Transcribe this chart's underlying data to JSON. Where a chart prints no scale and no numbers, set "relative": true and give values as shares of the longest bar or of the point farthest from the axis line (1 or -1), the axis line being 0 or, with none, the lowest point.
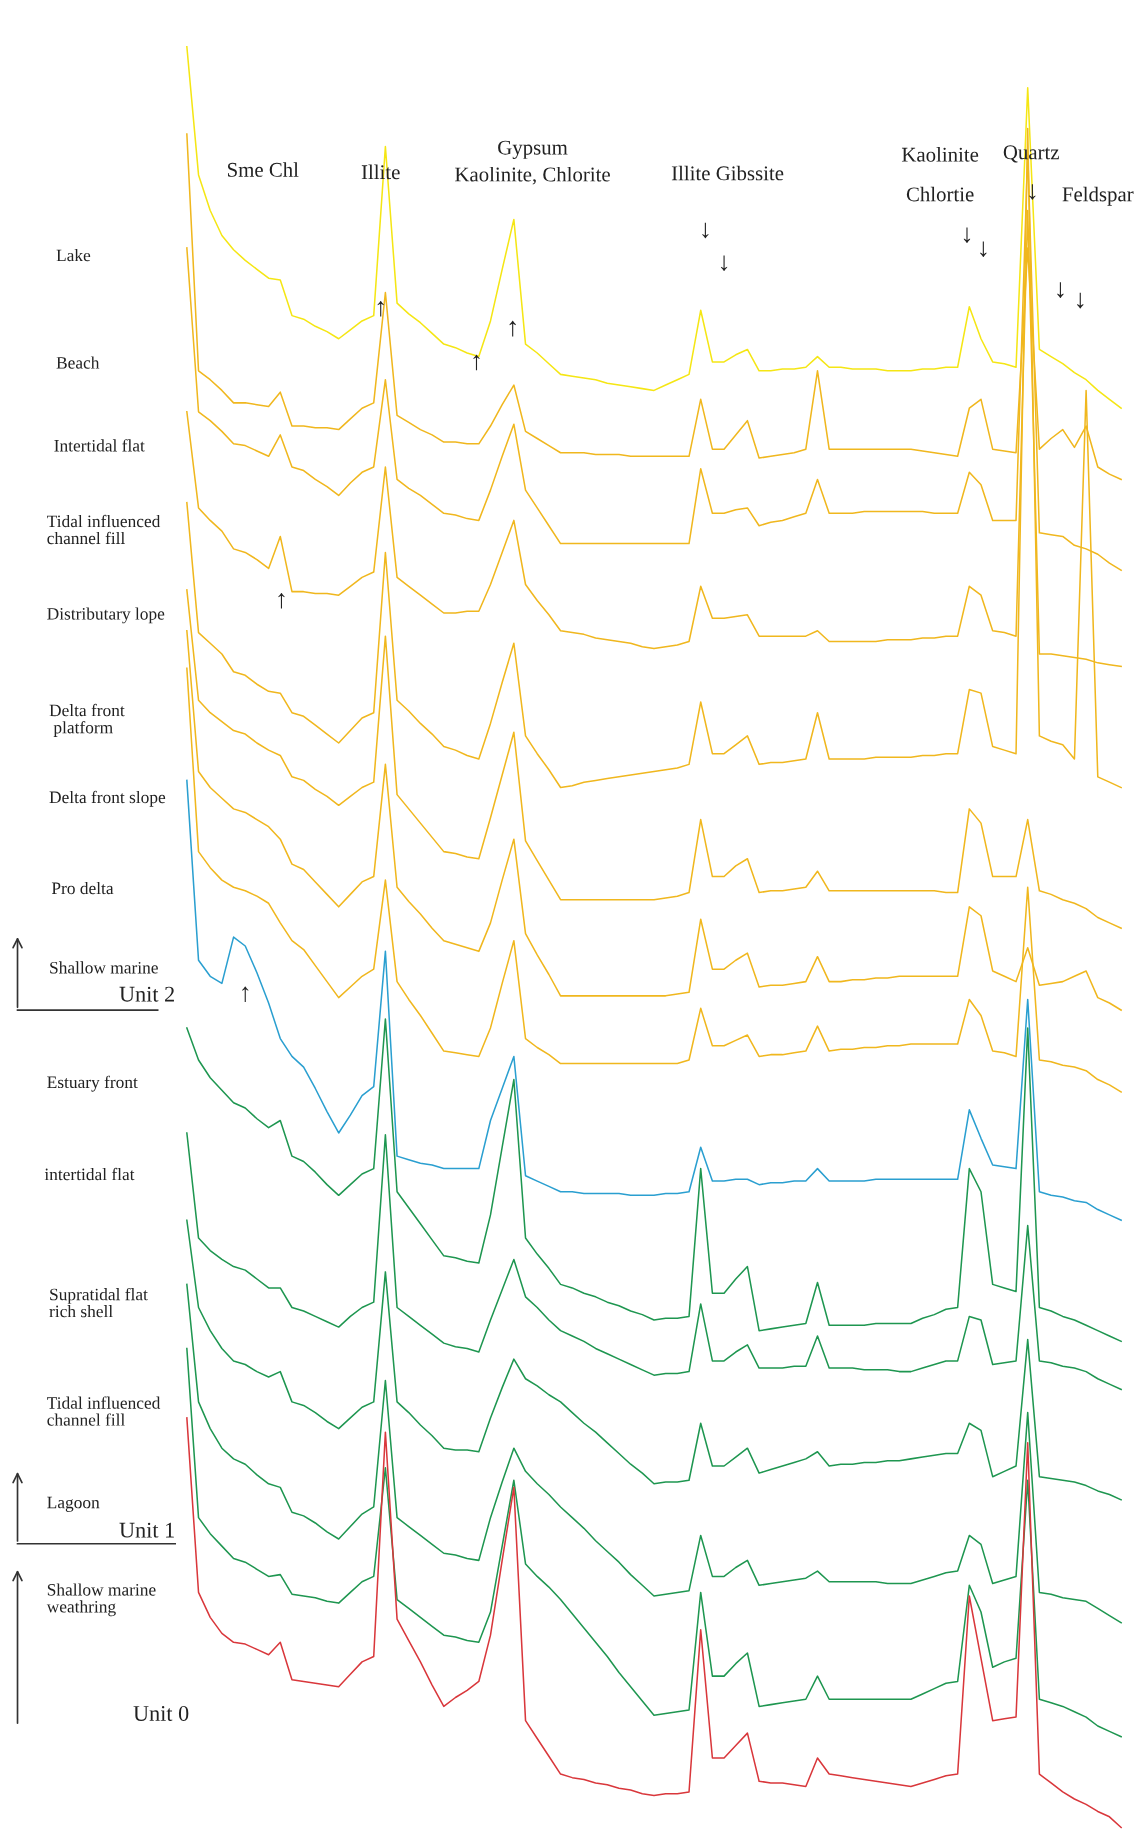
{
  "chart_data": {
    "type": "line",
    "relative": true,
    "tick_labels": false,
    "marker": "none",
    "line_style": "solid",
    "categories": [
      null,
      null,
      null,
      null,
      null,
      null,
      null,
      null,
      null,
      null,
      null,
      null,
      null,
      null,
      null,
      null,
      null,
      null,
      null,
      null,
      null,
      null,
      null,
      null,
      null,
      null,
      null,
      null,
      null,
      null,
      null,
      null,
      null,
      null,
      null,
      null,
      null,
      null,
      null,
      null,
      null,
      null,
      null,
      null,
      null,
      null,
      null,
      null,
      null,
      null,
      null,
      null,
      null,
      null,
      null,
      null,
      null,
      null,
      null,
      null,
      null,
      null,
      null,
      null,
      null,
      null,
      null,
      null,
      null,
      null,
      null,
      null,
      null,
      null,
      null,
      null,
      null,
      null,
      null,
      null,
      null
    ],
    "series": [
      {
        "color": "#f5e614",
        "values": [
          1.0,
          0.928,
          0.908,
          0.894,
          0.886,
          0.88,
          0.875,
          0.87,
          0.869,
          0.849,
          0.847,
          0.843,
          0.84,
          0.836,
          0.841,
          0.846,
          0.849,
          0.944,
          0.856,
          0.85,
          0.845,
          0.839,
          0.833,
          0.831,
          0.828,
          0.826,
          0.846,
          0.875,
          0.903,
          0.833,
          0.828,
          0.822,
          0.816,
          0.815,
          0.814,
          0.813,
          0.811,
          0.81,
          0.809,
          0.808,
          0.807,
          0.81,
          0.813,
          0.816,
          0.852,
          0.823,
          0.823,
          0.827,
          0.83,
          0.818,
          0.818,
          0.819,
          0.819,
          0.82,
          0.826,
          0.82,
          0.82,
          0.819,
          0.819,
          0.819,
          0.818,
          0.818,
          0.818,
          0.819,
          0.819,
          0.82,
          0.82,
          0.854,
          0.836,
          0.823,
          0.822,
          0.82,
          0.977,
          0.83,
          0.826,
          0.822,
          0.817,
          0.813,
          0.807,
          0.802,
          0.797
        ]
      },
      {
        "color": "#f0b71e",
        "values": [
          0.951,
          0.818,
          0.813,
          0.807,
          0.8,
          0.8,
          0.799,
          0.798,
          0.806,
          0.787,
          0.787,
          0.786,
          0.786,
          0.785,
          0.791,
          0.797,
          0.8,
          0.862,
          0.793,
          0.789,
          0.785,
          0.782,
          0.778,
          0.778,
          0.777,
          0.777,
          0.787,
          0.799,
          0.81,
          0.784,
          0.78,
          0.776,
          0.772,
          0.772,
          0.772,
          0.771,
          0.771,
          0.771,
          0.77,
          0.77,
          0.77,
          0.77,
          0.77,
          0.77,
          0.802,
          0.774,
          0.774,
          0.782,
          0.79,
          0.769,
          0.77,
          0.771,
          0.772,
          0.774,
          0.818,
          0.774,
          0.774,
          0.774,
          0.774,
          0.774,
          0.774,
          0.774,
          0.774,
          0.773,
          0.772,
          0.771,
          0.77,
          0.797,
          0.802,
          0.774,
          0.773,
          0.772,
          0.887,
          0.774,
          0.78,
          0.785,
          0.775,
          0.787,
          0.764,
          0.76,
          0.757
        ]
      },
      {
        "color": "#f0b71e",
        "values": [
          0.887,
          0.795,
          0.79,
          0.784,
          0.777,
          0.776,
          0.773,
          0.77,
          0.782,
          0.764,
          0.762,
          0.757,
          0.753,
          0.748,
          0.755,
          0.761,
          0.764,
          0.813,
          0.757,
          0.752,
          0.748,
          0.743,
          0.738,
          0.737,
          0.735,
          0.734,
          0.751,
          0.77,
          0.788,
          0.751,
          0.741,
          0.731,
          0.721,
          0.721,
          0.721,
          0.721,
          0.721,
          0.721,
          0.721,
          0.721,
          0.721,
          0.721,
          0.721,
          0.721,
          0.763,
          0.738,
          0.738,
          0.74,
          0.741,
          0.731,
          0.733,
          0.734,
          0.736,
          0.738,
          0.757,
          0.738,
          0.738,
          0.738,
          0.739,
          0.739,
          0.739,
          0.739,
          0.739,
          0.739,
          0.738,
          0.738,
          0.738,
          0.761,
          0.754,
          0.734,
          0.734,
          0.734,
          0.941,
          0.727,
          0.726,
          0.725,
          0.72,
          0.718,
          0.715,
          0.71,
          0.706
        ]
      },
      {
        "color": "#f0b71e",
        "values": [
          0.795,
          0.741,
          0.734,
          0.728,
          0.718,
          0.716,
          0.712,
          0.707,
          0.725,
          0.694,
          0.694,
          0.693,
          0.693,
          0.692,
          0.697,
          0.702,
          0.705,
          0.764,
          0.702,
          0.697,
          0.692,
          0.687,
          0.682,
          0.682,
          0.683,
          0.683,
          0.698,
          0.716,
          0.734,
          0.698,
          0.689,
          0.681,
          0.672,
          0.671,
          0.67,
          0.668,
          0.667,
          0.666,
          0.665,
          0.663,
          0.662,
          0.663,
          0.664,
          0.666,
          0.697,
          0.679,
          0.679,
          0.68,
          0.681,
          0.669,
          0.669,
          0.669,
          0.669,
          0.669,
          0.672,
          0.666,
          0.666,
          0.666,
          0.666,
          0.666,
          0.667,
          0.667,
          0.667,
          0.668,
          0.668,
          0.669,
          0.669,
          0.697,
          0.692,
          0.672,
          0.671,
          0.669,
          0.908,
          0.659,
          0.659,
          0.658,
          0.657,
          0.656,
          0.654,
          0.653,
          0.652
        ]
      },
      {
        "color": "#f0b71e",
        "values": [
          0.744,
          0.671,
          0.665,
          0.659,
          0.649,
          0.647,
          0.642,
          0.638,
          0.637,
          0.626,
          0.624,
          0.619,
          0.614,
          0.609,
          0.616,
          0.623,
          0.626,
          0.716,
          0.633,
          0.627,
          0.62,
          0.614,
          0.607,
          0.605,
          0.602,
          0.6,
          0.62,
          0.643,
          0.665,
          0.613,
          0.603,
          0.594,
          0.584,
          0.585,
          0.587,
          0.588,
          0.589,
          0.59,
          0.591,
          0.592,
          0.593,
          0.594,
          0.595,
          0.597,
          0.632,
          0.603,
          0.603,
          0.608,
          0.613,
          0.597,
          0.598,
          0.598,
          0.599,
          0.6,
          0.626,
          0.6,
          0.6,
          0.6,
          0.6,
          0.601,
          0.601,
          0.601,
          0.601,
          0.602,
          0.602,
          0.603,
          0.603,
          0.639,
          0.637,
          0.607,
          0.605,
          0.603,
          0.954,
          0.613,
          0.61,
          0.608,
          0.6,
          0.807,
          0.59,
          0.587,
          0.584
        ]
      },
      {
        "color": "#f0b71e",
        "values": [
          0.695,
          0.633,
          0.626,
          0.621,
          0.616,
          0.614,
          0.609,
          0.605,
          0.602,
          0.59,
          0.588,
          0.583,
          0.579,
          0.574,
          0.579,
          0.584,
          0.587,
          0.669,
          0.58,
          0.572,
          0.564,
          0.556,
          0.548,
          0.547,
          0.545,
          0.544,
          0.567,
          0.591,
          0.615,
          0.554,
          0.543,
          0.532,
          0.521,
          0.521,
          0.521,
          0.521,
          0.521,
          0.521,
          0.521,
          0.521,
          0.521,
          0.522,
          0.523,
          0.525,
          0.566,
          0.534,
          0.534,
          0.54,
          0.544,
          0.525,
          0.526,
          0.526,
          0.527,
          0.528,
          0.537,
          0.526,
          0.526,
          0.526,
          0.526,
          0.526,
          0.526,
          0.526,
          0.526,
          0.526,
          0.526,
          0.525,
          0.525,
          0.572,
          0.564,
          0.534,
          0.534,
          0.534,
          0.566,
          0.526,
          0.524,
          0.521,
          0.519,
          0.516,
          0.511,
          0.508,
          0.505
        ]
      },
      {
        "color": "#f0b71e",
        "values": [
          0.672,
          0.593,
          0.584,
          0.578,
          0.572,
          0.57,
          0.566,
          0.562,
          0.555,
          0.541,
          0.538,
          0.531,
          0.524,
          0.517,
          0.524,
          0.531,
          0.534,
          0.597,
          0.528,
          0.52,
          0.513,
          0.505,
          0.498,
          0.496,
          0.494,
          0.492,
          0.508,
          0.532,
          0.555,
          0.502,
          0.49,
          0.479,
          0.467,
          0.467,
          0.467,
          0.467,
          0.467,
          0.467,
          0.467,
          0.467,
          0.467,
          0.467,
          0.468,
          0.469,
          0.51,
          0.482,
          0.482,
          0.487,
          0.491,
          0.472,
          0.473,
          0.473,
          0.474,
          0.475,
          0.489,
          0.475,
          0.475,
          0.476,
          0.476,
          0.477,
          0.477,
          0.478,
          0.478,
          0.478,
          0.478,
          0.478,
          0.478,
          0.517,
          0.512,
          0.481,
          0.478,
          0.475,
          0.494,
          0.473,
          0.474,
          0.475,
          0.478,
          0.481,
          0.466,
          0.463,
          0.459
        ]
      },
      {
        "color": "#f0b71e",
        "values": [
          0.651,
          0.548,
          0.539,
          0.532,
          0.528,
          0.526,
          0.523,
          0.519,
          0.508,
          0.498,
          0.493,
          0.484,
          0.475,
          0.466,
          0.472,
          0.478,
          0.482,
          0.532,
          0.475,
          0.465,
          0.456,
          0.446,
          0.436,
          0.435,
          0.434,
          0.433,
          0.449,
          0.474,
          0.498,
          0.443,
          0.438,
          0.434,
          0.429,
          0.429,
          0.429,
          0.429,
          0.429,
          0.429,
          0.429,
          0.429,
          0.429,
          0.429,
          0.429,
          0.431,
          0.46,
          0.439,
          0.439,
          0.442,
          0.445,
          0.433,
          0.434,
          0.434,
          0.435,
          0.436,
          0.45,
          0.436,
          0.437,
          0.437,
          0.438,
          0.438,
          0.439,
          0.439,
          0.44,
          0.44,
          0.44,
          0.44,
          0.44,
          0.465,
          0.456,
          0.436,
          0.435,
          0.433,
          0.528,
          0.431,
          0.43,
          0.428,
          0.427,
          0.425,
          0.42,
          0.417,
          0.413
        ]
      },
      {
        "color": "#2a9fd0",
        "values": [
          0.588,
          0.487,
          0.478,
          0.474,
          0.5,
          0.495,
          0.48,
          0.463,
          0.443,
          0.433,
          0.427,
          0.415,
          0.402,
          0.39,
          0.4,
          0.411,
          0.416,
          0.492,
          0.377,
          0.375,
          0.373,
          0.372,
          0.37,
          0.37,
          0.37,
          0.37,
          0.397,
          0.415,
          0.433,
          0.366,
          0.363,
          0.36,
          0.357,
          0.357,
          0.356,
          0.356,
          0.356,
          0.356,
          0.355,
          0.355,
          0.355,
          0.356,
          0.356,
          0.357,
          0.382,
          0.363,
          0.363,
          0.364,
          0.364,
          0.361,
          0.362,
          0.362,
          0.363,
          0.363,
          0.37,
          0.363,
          0.363,
          0.363,
          0.363,
          0.364,
          0.364,
          0.364,
          0.364,
          0.364,
          0.364,
          0.364,
          0.364,
          0.403,
          0.387,
          0.372,
          0.371,
          0.37,
          0.465,
          0.357,
          0.355,
          0.354,
          0.352,
          0.351,
          0.347,
          0.344,
          0.341
        ]
      },
      {
        "color": "#1e9650",
        "values": [
          0.449,
          0.431,
          0.421,
          0.414,
          0.407,
          0.404,
          0.398,
          0.393,
          0.397,
          0.377,
          0.374,
          0.368,
          0.361,
          0.355,
          0.361,
          0.367,
          0.37,
          0.454,
          0.357,
          0.348,
          0.339,
          0.33,
          0.321,
          0.32,
          0.318,
          0.317,
          0.344,
          0.382,
          0.42,
          0.331,
          0.322,
          0.314,
          0.305,
          0.303,
          0.3,
          0.298,
          0.295,
          0.293,
          0.29,
          0.288,
          0.285,
          0.286,
          0.286,
          0.287,
          0.37,
          0.3,
          0.3,
          0.308,
          0.315,
          0.279,
          0.28,
          0.281,
          0.282,
          0.283,
          0.306,
          0.282,
          0.282,
          0.282,
          0.282,
          0.283,
          0.283,
          0.283,
          0.283,
          0.286,
          0.288,
          0.291,
          0.292,
          0.37,
          0.357,
          0.305,
          0.303,
          0.301,
          0.449,
          0.292,
          0.29,
          0.287,
          0.285,
          0.282,
          0.279,
          0.276,
          0.273
        ]
      },
      {
        "color": "#1e9650",
        "values": [
          0.39,
          0.331,
          0.324,
          0.319,
          0.315,
          0.313,
          0.308,
          0.303,
          0.303,
          0.292,
          0.29,
          0.287,
          0.284,
          0.281,
          0.287,
          0.292,
          0.295,
          0.389,
          0.292,
          0.287,
          0.282,
          0.277,
          0.272,
          0.27,
          0.269,
          0.267,
          0.285,
          0.302,
          0.319,
          0.298,
          0.292,
          0.285,
          0.279,
          0.276,
          0.273,
          0.269,
          0.266,
          0.263,
          0.26,
          0.257,
          0.254,
          0.255,
          0.255,
          0.256,
          0.294,
          0.262,
          0.262,
          0.267,
          0.271,
          0.258,
          0.258,
          0.258,
          0.259,
          0.259,
          0.276,
          0.258,
          0.258,
          0.258,
          0.257,
          0.257,
          0.257,
          0.256,
          0.256,
          0.258,
          0.26,
          0.262,
          0.262,
          0.287,
          0.285,
          0.26,
          0.261,
          0.262,
          0.338,
          0.262,
          0.261,
          0.259,
          0.258,
          0.256,
          0.252,
          0.249,
          0.246
        ]
      },
      {
        "color": "#1e9650",
        "values": [
          0.341,
          0.292,
          0.279,
          0.269,
          0.262,
          0.26,
          0.256,
          0.253,
          0.256,
          0.239,
          0.237,
          0.233,
          0.228,
          0.224,
          0.23,
          0.236,
          0.239,
          0.312,
          0.239,
          0.233,
          0.226,
          0.22,
          0.213,
          0.212,
          0.212,
          0.211,
          0.23,
          0.247,
          0.263,
          0.252,
          0.248,
          0.243,
          0.239,
          0.233,
          0.227,
          0.222,
          0.216,
          0.21,
          0.204,
          0.199,
          0.193,
          0.194,
          0.194,
          0.195,
          0.227,
          0.203,
          0.203,
          0.208,
          0.213,
          0.199,
          0.201,
          0.203,
          0.205,
          0.207,
          0.211,
          0.203,
          0.204,
          0.204,
          0.205,
          0.205,
          0.206,
          0.206,
          0.207,
          0.208,
          0.209,
          0.21,
          0.21,
          0.227,
          0.223,
          0.197,
          0.2,
          0.203,
          0.274,
          0.197,
          0.196,
          0.195,
          0.194,
          0.192,
          0.189,
          0.187,
          0.184
        ]
      },
      {
        "color": "#1e9650",
        "values": [
          0.305,
          0.239,
          0.224,
          0.213,
          0.207,
          0.204,
          0.198,
          0.193,
          0.191,
          0.177,
          0.175,
          0.171,
          0.166,
          0.162,
          0.169,
          0.176,
          0.18,
          0.251,
          0.174,
          0.169,
          0.164,
          0.159,
          0.154,
          0.153,
          0.151,
          0.15,
          0.174,
          0.194,
          0.213,
          0.2,
          0.193,
          0.187,
          0.18,
          0.174,
          0.168,
          0.161,
          0.155,
          0.149,
          0.142,
          0.136,
          0.13,
          0.131,
          0.132,
          0.133,
          0.164,
          0.141,
          0.141,
          0.146,
          0.15,
          0.136,
          0.137,
          0.138,
          0.139,
          0.14,
          0.144,
          0.138,
          0.138,
          0.138,
          0.138,
          0.138,
          0.137,
          0.137,
          0.137,
          0.139,
          0.141,
          0.143,
          0.144,
          0.164,
          0.159,
          0.137,
          0.139,
          0.141,
          0.233,
          0.132,
          0.131,
          0.129,
          0.128,
          0.127,
          0.123,
          0.119,
          0.115
        ]
      },
      {
        "color": "#1e9650",
        "values": [
          0.269,
          0.174,
          0.165,
          0.158,
          0.151,
          0.149,
          0.145,
          0.141,
          0.142,
          0.131,
          0.13,
          0.129,
          0.127,
          0.126,
          0.132,
          0.138,
          0.141,
          0.202,
          0.128,
          0.123,
          0.118,
          0.113,
          0.108,
          0.107,
          0.105,
          0.104,
          0.121,
          0.158,
          0.195,
          0.148,
          0.141,
          0.135,
          0.128,
          0.12,
          0.112,
          0.104,
          0.096,
          0.087,
          0.079,
          0.071,
          0.063,
          0.064,
          0.065,
          0.066,
          0.132,
          0.085,
          0.085,
          0.092,
          0.098,
          0.068,
          0.069,
          0.07,
          0.071,
          0.072,
          0.085,
          0.072,
          0.072,
          0.072,
          0.072,
          0.072,
          0.072,
          0.072,
          0.072,
          0.075,
          0.078,
          0.081,
          0.082,
          0.136,
          0.121,
          0.09,
          0.093,
          0.095,
          0.195,
          0.072,
          0.07,
          0.068,
          0.065,
          0.062,
          0.057,
          0.054,
          0.051
        ]
      },
      {
        "color": "#d9373b",
        "values": [
          0.23,
          0.132,
          0.118,
          0.109,
          0.104,
          0.103,
          0.1,
          0.097,
          0.104,
          0.083,
          0.082,
          0.081,
          0.08,
          0.079,
          0.086,
          0.093,
          0.096,
          0.222,
          0.117,
          0.105,
          0.093,
          0.08,
          0.068,
          0.073,
          0.077,
          0.082,
          0.108,
          0.15,
          0.191,
          0.06,
          0.05,
          0.04,
          0.03,
          0.028,
          0.027,
          0.025,
          0.024,
          0.022,
          0.021,
          0.019,
          0.018,
          0.019,
          0.019,
          0.02,
          0.111,
          0.039,
          0.039,
          0.046,
          0.053,
          0.026,
          0.025,
          0.025,
          0.024,
          0.023,
          0.039,
          0.03,
          0.029,
          0.028,
          0.027,
          0.026,
          0.025,
          0.024,
          0.023,
          0.025,
          0.027,
          0.029,
          0.03,
          0.13,
          0.095,
          0.06,
          0.061,
          0.062,
          0.216,
          0.03,
          0.025,
          0.02,
          0.016,
          0.013,
          0.009,
          0.006,
          0.0
        ]
      }
    ],
    "annotations": [
      "Lake",
      "Beach",
      "Intertidal flat",
      "Tidal influenced\nchannel fill",
      "Distributary lope",
      "Delta front\n platform",
      "Delta front slope",
      "Pro delta",
      "Shallow marine",
      "Estuary front",
      "intertidal flat",
      "Supratidal flat\nrich shell",
      "Tidal influenced\nchannel fill",
      "Lagoon",
      "Shallow marine\nweathring",
      "Sme Chl",
      "Illite",
      "Gypsum",
      "Kaolinite, Chlorite",
      "Illite Gibssite",
      "Kaolinite",
      "Chlortie",
      "Quartz",
      "Feldspar",
      "Unit 2",
      "Unit 1",
      "Unit 0",
      "↓",
      "↓",
      "↓",
      "↓",
      "↓",
      "↓",
      "↓",
      "↑",
      "↑",
      "↑",
      "↑",
      "↑"
    ]
  }
}
